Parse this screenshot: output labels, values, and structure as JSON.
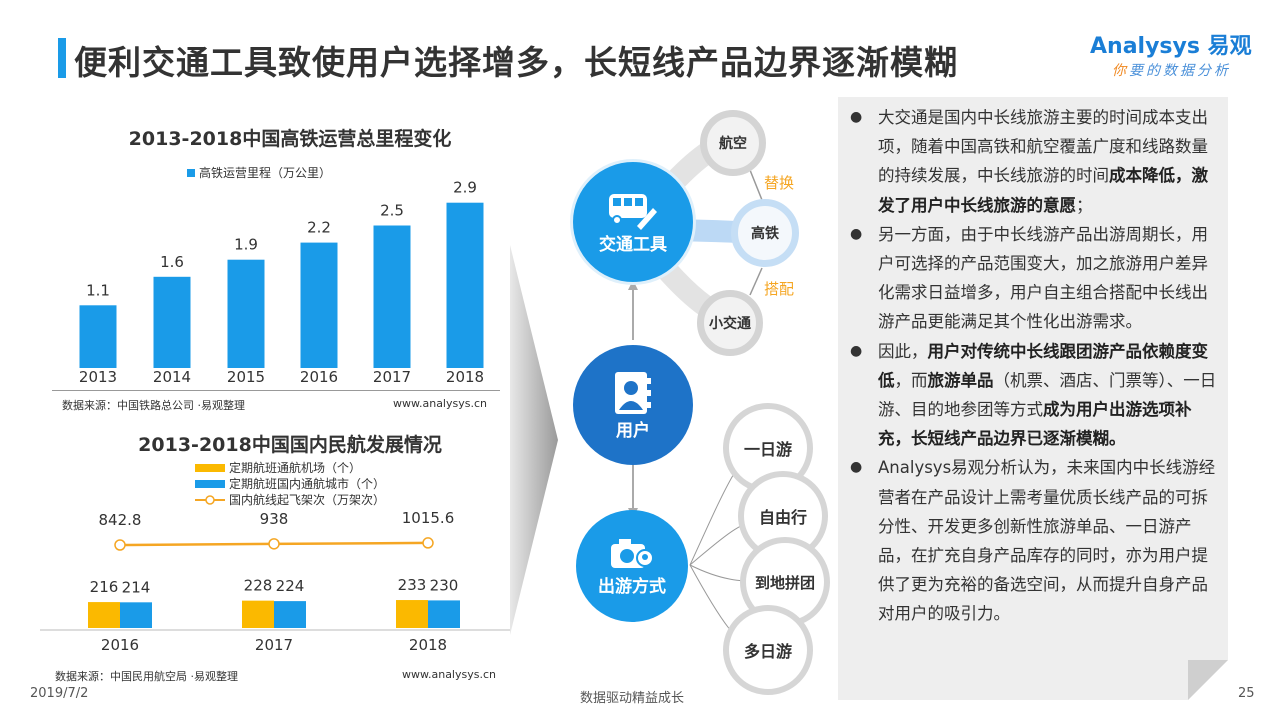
{
  "header": {
    "title": "便利交通工具致使用户选择增多，长短线产品边界逐渐模糊",
    "accent": "#1a9be8"
  },
  "logo": {
    "brand": "Analysys 易观",
    "slogan_first": "你",
    "slogan_rest": "要的数据分析"
  },
  "chart_data": [
    {
      "type": "bar",
      "title": "2013-2018中国高铁运营总里程变化",
      "categories": [
        "2013",
        "2014",
        "2015",
        "2016",
        "2017",
        "2018"
      ],
      "series": [
        {
          "name": "高铁运营里程（万公里）",
          "values": [
            1.1,
            1.6,
            1.9,
            2.2,
            2.5,
            2.9
          ],
          "color": "#1a9be8"
        }
      ],
      "data_labels": [
        "1.1",
        "1.6",
        "1.9",
        "2.2",
        "2.5",
        "2.9"
      ],
      "xlabel": "",
      "ylabel": "",
      "legend": "top",
      "grid": false,
      "source": "数据来源：中国铁路总公司 ·易观整理",
      "site": "www.analysys.cn"
    },
    {
      "type": "bar+line",
      "title": "2013-2018中国国内民航发展情况",
      "categories": [
        "2016",
        "2017",
        "2018"
      ],
      "series": [
        {
          "name": "定期航班通航机场（个）",
          "type": "bar",
          "values": [
            216,
            228,
            233
          ],
          "color": "#fbb900"
        },
        {
          "name": "定期航班国内通航城市（个）",
          "type": "bar",
          "values": [
            214,
            224,
            230
          ],
          "color": "#1a9be8"
        },
        {
          "name": "国内航线起飞架次（万架次）",
          "type": "line",
          "values": [
            842.8,
            938,
            1015.6
          ],
          "labels": [
            "842.8",
            "938",
            "1015.6"
          ],
          "color": "#f5a623"
        }
      ],
      "legend": "top",
      "grid": false,
      "source": "数据来源：中国民用航空局 ·易观整理",
      "site": "www.analysys.cn"
    }
  ],
  "diagram": {
    "transport": "交通工具",
    "user": "用户",
    "travel": "出游方式",
    "transport_icon": "bus-pencil-icon",
    "user_icon": "contact-book-icon",
    "travel_icon": "camera-location-icon",
    "air": "航空",
    "rail": "高铁",
    "local": "小交通",
    "replace": "替换",
    "combine": "搭配",
    "options": [
      "一日游",
      "自由行",
      "到地拼团",
      "多日游"
    ],
    "colors": {
      "transport": "#1a9be8",
      "user": "#1e73c8",
      "travel": "#1a9be8",
      "label": "#f5a623"
    }
  },
  "panel": {
    "bullets": [
      [
        {
          "t": "大交通是国内中长线旅游主要的时间成本支出项，随着中国高铁和航空覆盖广度和线路数量的持续发展，中长线旅游的时间"
        },
        {
          "t": "成本降低，激发了用户中长线旅游的意愿",
          "b": true
        },
        {
          "t": "；"
        }
      ],
      [
        {
          "t": "另一方面，由于中长线游产品出游周期长，用户可选择的产品范围变大，加之旅游用户差异化需求日益增多，用户自主组合搭配中长线出游产品更能满足其个性化出游需求。"
        }
      ],
      [
        {
          "t": "因此，"
        },
        {
          "t": "用户对传统中长线跟团游产品依赖度变低",
          "b": true
        },
        {
          "t": "，而"
        },
        {
          "t": "旅游单品",
          "b": true
        },
        {
          "t": "（机票、酒店、门票等）、一日游、目的地参团等方式"
        },
        {
          "t": "成为用户出游选项补充，长短线产品边界已逐渐模糊。",
          "b": true
        }
      ],
      [
        {
          "t": "Analysys易观分析认为，未来国内中长线游经营者在产品设计上需考量优质长线产品的可拆分性、开发更多创新性旅游单品、一日游产品，在扩充自身产品库存的同时，亦为用户提供了更为充裕的备选空间，从而提升自身产品对用户的吸引力。"
        }
      ]
    ]
  },
  "footer": {
    "date": "2019/7/2",
    "slogan": "数据驱动精益成长",
    "page": "25"
  }
}
